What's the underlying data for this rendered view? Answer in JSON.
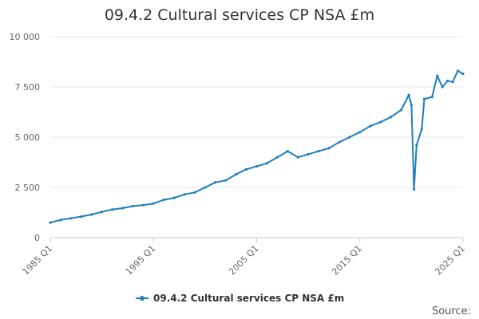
{
  "chart_data": {
    "type": "line",
    "title": "09.4.2 Cultural services CP NSA £m",
    "xlabel": "",
    "ylabel": "",
    "x_tick_labels": [
      "1985 Q1",
      "1995 Q1",
      "2005 Q1",
      "2015 Q1",
      "2025 Q1"
    ],
    "y_tick_labels": [
      "0",
      "2 500",
      "5 000",
      "7 500",
      "10 000"
    ],
    "y_ticks": [
      0,
      2500,
      5000,
      7500,
      10000
    ],
    "ylim": [
      0,
      10000
    ],
    "xlim": [
      "1985 Q1",
      "2025 Q1"
    ],
    "grid": "horizontal",
    "legend": "bottom",
    "colors": {
      "series": "#1f7fbd",
      "grid": "#e6e6e6",
      "text": "#666666"
    },
    "series": [
      {
        "name": "09.4.2 Cultural services CP NSA £m",
        "points": [
          [
            "1985 Q1",
            750
          ],
          [
            "1986 Q1",
            880
          ],
          [
            "1987 Q1",
            960
          ],
          [
            "1988 Q1",
            1050
          ],
          [
            "1989 Q1",
            1150
          ],
          [
            "1990 Q1",
            1280
          ],
          [
            "1991 Q1",
            1400
          ],
          [
            "1992 Q1",
            1470
          ],
          [
            "1993 Q1",
            1570
          ],
          [
            "1994 Q1",
            1620
          ],
          [
            "1995 Q1",
            1700
          ],
          [
            "1996 Q1",
            1880
          ],
          [
            "1997 Q1",
            1980
          ],
          [
            "1998 Q1",
            2150
          ],
          [
            "1999 Q1",
            2250
          ],
          [
            "2000 Q1",
            2500
          ],
          [
            "2001 Q1",
            2750
          ],
          [
            "2002 Q1",
            2850
          ],
          [
            "2003 Q1",
            3150
          ],
          [
            "2004 Q1",
            3400
          ],
          [
            "2005 Q1",
            3550
          ],
          [
            "2006 Q1",
            3700
          ],
          [
            "2007 Q1",
            4000
          ],
          [
            "2008 Q1",
            4300
          ],
          [
            "2009 Q1",
            4000
          ],
          [
            "2010 Q1",
            4150
          ],
          [
            "2011 Q1",
            4300
          ],
          [
            "2012 Q1",
            4450
          ],
          [
            "2013 Q1",
            4750
          ],
          [
            "2014 Q1",
            5000
          ],
          [
            "2015 Q1",
            5250
          ],
          [
            "2016 Q1",
            5550
          ],
          [
            "2017 Q1",
            5750
          ],
          [
            "2018 Q1",
            6000
          ],
          [
            "2019 Q1",
            6350
          ],
          [
            "2019 Q4",
            7100
          ],
          [
            "2020 Q1",
            6600
          ],
          [
            "2020 Q2",
            2400
          ],
          [
            "2020 Q3",
            4600
          ],
          [
            "2021 Q1",
            5400
          ],
          [
            "2021 Q2",
            6900
          ],
          [
            "2022 Q1",
            7000
          ],
          [
            "2022 Q3",
            8050
          ],
          [
            "2023 Q1",
            7500
          ],
          [
            "2023 Q3",
            7800
          ],
          [
            "2024 Q1",
            7750
          ],
          [
            "2024 Q3",
            8300
          ],
          [
            "2025 Q1",
            8150
          ]
        ]
      }
    ],
    "source_label": "Source:"
  }
}
